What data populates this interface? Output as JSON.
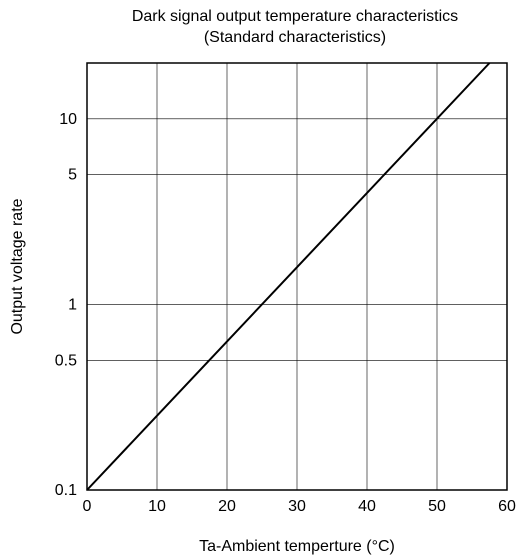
{
  "chart_data": {
    "type": "line",
    "title": "Dark signal output temperature characteristics",
    "subtitle": "(Standard characteristics)",
    "xlabel": "Ta-Ambient temperture (°C)",
    "ylabel": "Output voltage rate",
    "x_ticks": [
      0,
      10,
      20,
      30,
      40,
      50,
      60
    ],
    "x_tick_labels": [
      "0",
      "10",
      "20",
      "30",
      "40",
      "50",
      "60"
    ],
    "xlim": [
      0,
      60
    ],
    "y_scale": "log",
    "y_ticks": [
      0.1,
      0.5,
      1,
      5,
      10
    ],
    "y_tick_labels": [
      "0.1",
      "0.5",
      "1",
      "5",
      "10"
    ],
    "ylim": [
      0.1,
      20
    ],
    "grid": true,
    "line_color": "#000000",
    "series": [
      {
        "x": [
          0,
          57.5
        ],
        "y": [
          0.1,
          20
        ]
      }
    ]
  }
}
